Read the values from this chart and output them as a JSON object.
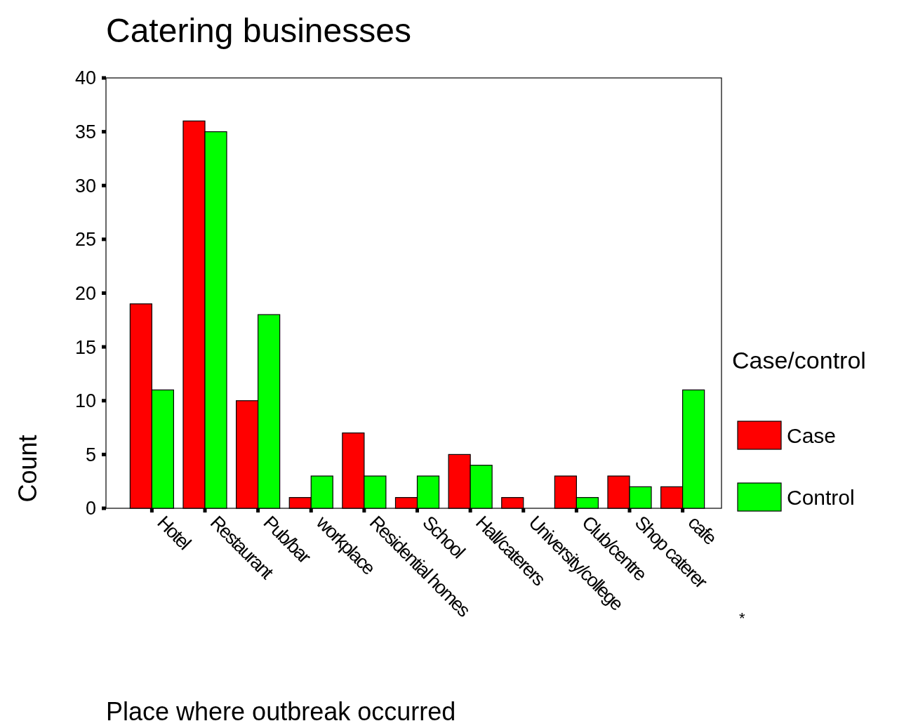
{
  "chart_data": {
    "type": "bar",
    "title": "Catering businesses",
    "xlabel": "Place where outbreak occurred",
    "ylabel": "Count",
    "legend_title": "Case/control",
    "categories": [
      "Hotel",
      "Restaurant",
      "Pub/bar",
      "workplace",
      "Residential homes",
      "School",
      "Hall/caterers",
      "University/college",
      "Club/centre",
      "Shop caterer",
      "cafe"
    ],
    "series": [
      {
        "name": "Case",
        "color": "#ff0000",
        "values": [
          19,
          36,
          10,
          1,
          7,
          1,
          5,
          1,
          3,
          3,
          2
        ]
      },
      {
        "name": "Control",
        "color": "#00ff00",
        "values": [
          11,
          35,
          18,
          3,
          3,
          3,
          4,
          0,
          1,
          2,
          11
        ]
      }
    ],
    "ylim": [
      0,
      40
    ],
    "yticks": [
      0,
      5,
      10,
      15,
      20,
      25,
      30,
      35,
      40
    ],
    "grid": false,
    "legend": "right",
    "annotations": [
      "*"
    ]
  }
}
